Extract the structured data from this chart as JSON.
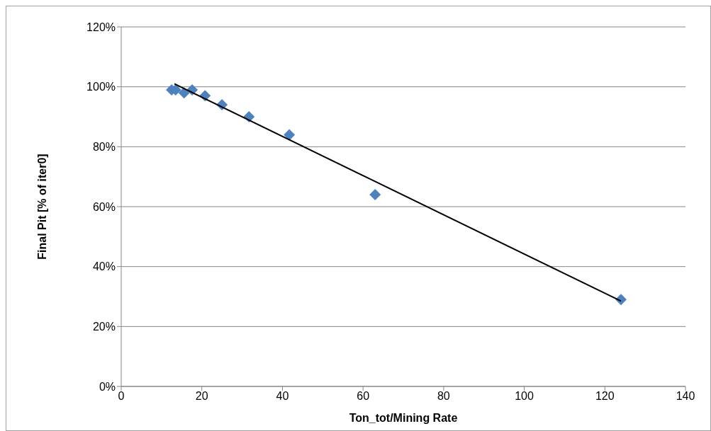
{
  "chart_data": {
    "type": "scatter",
    "xlabel": "Ton_tot/Mining Rate",
    "ylabel": "Final Pit [% of iter0]",
    "x": [
      12.5,
      13.5,
      15.6,
      17.6,
      20.8,
      25,
      31.7,
      41.7,
      63,
      124
    ],
    "series": [
      {
        "type": "scatter",
        "color": "#4f81bd",
        "marker": "diamond",
        "values": [
          99,
          99,
          98,
          99,
          97,
          94,
          90,
          84,
          64,
          29
        ]
      },
      {
        "type": "line",
        "color": "#000000",
        "marker": "none",
        "x": [
          13.2,
          124
        ],
        "values": [
          101,
          28.5
        ]
      }
    ],
    "xlim": [
      0,
      140
    ],
    "xticks": [
      0,
      20,
      40,
      60,
      80,
      100,
      120,
      140
    ],
    "ylim": [
      0,
      120
    ],
    "yticks": [
      {
        "value": 0,
        "label": "0%"
      },
      {
        "value": 20,
        "label": "20%"
      },
      {
        "value": 40,
        "label": "40%"
      },
      {
        "value": 60,
        "label": "60%"
      },
      {
        "value": 80,
        "label": "80%"
      },
      {
        "value": 100,
        "label": "100%"
      },
      {
        "value": 120,
        "label": "120%"
      }
    ],
    "grid": "y",
    "legend": false
  }
}
